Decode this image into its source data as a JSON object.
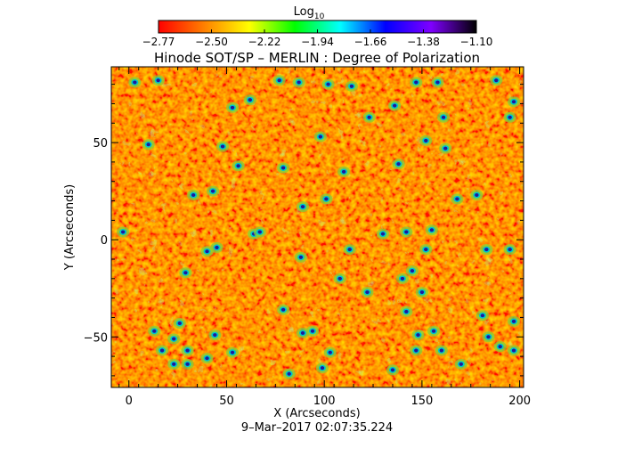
{
  "chart_data": {
    "type": "heatmap",
    "title": "Hinode SOT/SP – MERLIN : Degree of Polarization",
    "xlabel": "X (Arcseconds)",
    "ylabel": "Y (Arcseconds)",
    "xlim": [
      -9,
      202
    ],
    "ylim": [
      -76,
      89
    ],
    "x_ticks": [
      "0",
      "50",
      "100",
      "150",
      "200"
    ],
    "x_tick_values": [
      0,
      50,
      100,
      150,
      200
    ],
    "y_ticks": [
      "50",
      "0",
      "−50"
    ],
    "y_tick_values": [
      50,
      0,
      -50
    ],
    "colorbar": {
      "label": "Log",
      "label_sub": "10",
      "range": [
        -2.77,
        -1.1
      ],
      "tick_labels": [
        "−2.77",
        "−2.50",
        "−2.22",
        "−1.94",
        "−1.66",
        "−1.38",
        "−1.10"
      ],
      "colors": [
        "#ff0000",
        "#ff7f00",
        "#ffff00",
        "#00ff00",
        "#00ffff",
        "#0000ff",
        "#7f00ff",
        "#000000"
      ]
    },
    "colormap_background": [
      "#ff3a00",
      "#ff6a00",
      "#ff8c00",
      "#ffb000",
      "#ffd800"
    ],
    "strong_polarization_patches": [
      [
        3,
        81
      ],
      [
        15,
        82
      ],
      [
        62,
        72
      ],
      [
        77,
        82
      ],
      [
        87,
        81
      ],
      [
        102,
        80
      ],
      [
        114,
        79
      ],
      [
        147,
        81
      ],
      [
        158,
        81
      ],
      [
        188,
        82
      ],
      [
        197,
        71
      ],
      [
        53,
        68
      ],
      [
        123,
        63
      ],
      [
        136,
        69
      ],
      [
        161,
        63
      ],
      [
        195,
        63
      ],
      [
        10,
        49
      ],
      [
        48,
        48
      ],
      [
        98,
        53
      ],
      [
        152,
        51
      ],
      [
        162,
        47
      ],
      [
        56,
        38
      ],
      [
        79,
        37
      ],
      [
        110,
        35
      ],
      [
        138,
        39
      ],
      [
        33,
        23
      ],
      [
        43,
        25
      ],
      [
        101,
        21
      ],
      [
        168,
        21
      ],
      [
        178,
        23
      ],
      [
        89,
        17
      ],
      [
        -3,
        4
      ],
      [
        64,
        3
      ],
      [
        67,
        4
      ],
      [
        130,
        3
      ],
      [
        142,
        4
      ],
      [
        155,
        5
      ],
      [
        40,
        -6
      ],
      [
        45,
        -4
      ],
      [
        113,
        -5
      ],
      [
        152,
        -5
      ],
      [
        183,
        -5
      ],
      [
        195,
        -5
      ],
      [
        88,
        -9
      ],
      [
        29,
        -17
      ],
      [
        108,
        -20
      ],
      [
        140,
        -20
      ],
      [
        145,
        -16
      ],
      [
        122,
        -27
      ],
      [
        150,
        -27
      ],
      [
        79,
        -36
      ],
      [
        142,
        -37
      ],
      [
        181,
        -39
      ],
      [
        26,
        -43
      ],
      [
        13,
        -47
      ],
      [
        23,
        -51
      ],
      [
        44,
        -49
      ],
      [
        89,
        -48
      ],
      [
        94,
        -47
      ],
      [
        148,
        -49
      ],
      [
        156,
        -47
      ],
      [
        184,
        -50
      ],
      [
        197,
        -42
      ],
      [
        17,
        -57
      ],
      [
        30,
        -57
      ],
      [
        40,
        -61
      ],
      [
        53,
        -58
      ],
      [
        103,
        -58
      ],
      [
        147,
        -57
      ],
      [
        160,
        -57
      ],
      [
        190,
        -55
      ],
      [
        197,
        -57
      ],
      [
        23,
        -64
      ],
      [
        30,
        -64
      ],
      [
        99,
        -66
      ],
      [
        170,
        -64
      ],
      [
        82,
        -69
      ],
      [
        135,
        -67
      ]
    ]
  },
  "timestamp": "9–Mar–2017 02:07:35.224"
}
